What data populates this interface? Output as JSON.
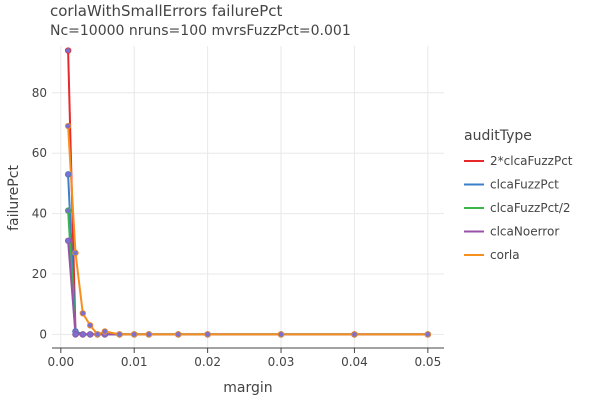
{
  "chart_data": {
    "type": "line",
    "title": "corlaWithSmallErrors failurePct",
    "subtitle": "Nc=10000 nruns=100 mvrsFuzzPct=0.001",
    "xlabel": "margin",
    "ylabel": "failurePct",
    "xlim": [
      -0.0012,
      0.0522
    ],
    "ylim": [
      -4.5,
      95.5
    ],
    "xticks": [
      {
        "value": 0,
        "label": "0.00"
      },
      {
        "value": 0.01,
        "label": "0.01"
      },
      {
        "value": 0.02,
        "label": "0.02"
      },
      {
        "value": 0.03,
        "label": "0.03"
      },
      {
        "value": 0.04,
        "label": "0.04"
      },
      {
        "value": 0.05,
        "label": "0.05"
      }
    ],
    "yticks": [
      {
        "value": 0,
        "label": "0"
      },
      {
        "value": 20,
        "label": "20"
      },
      {
        "value": 40,
        "label": "40"
      },
      {
        "value": 60,
        "label": "60"
      },
      {
        "value": 80,
        "label": "80"
      }
    ],
    "grid": true,
    "legend_title": "auditType",
    "legend_position": "right",
    "marker_color": "#7b6fd0",
    "x": [
      0.001,
      0.002,
      0.003,
      0.004,
      0.005,
      0.006,
      0.008,
      0.01,
      0.012,
      0.016,
      0.02,
      0.03,
      0.04,
      0.05
    ],
    "series": [
      {
        "name": "2*clcaFuzzPct",
        "color": "#e8292b",
        "values": [
          94,
          1,
          0,
          0,
          0,
          0,
          0,
          0,
          0,
          0,
          0,
          0,
          0,
          0
        ]
      },
      {
        "name": "clcaFuzzPct",
        "color": "#3d7fc9",
        "values": [
          53,
          1,
          0,
          0,
          0,
          0,
          0,
          0,
          0,
          0,
          0,
          0,
          0,
          0
        ]
      },
      {
        "name": "clcaFuzzPct/2",
        "color": "#3cb54b",
        "values": [
          41,
          0,
          0,
          0,
          0,
          0,
          0,
          0,
          0,
          0,
          0,
          0,
          0,
          0
        ]
      },
      {
        "name": "clcaNoerror",
        "color": "#9a51a8",
        "values": [
          31,
          0,
          0,
          0,
          0,
          0,
          0,
          0,
          0,
          0,
          0,
          0,
          0,
          0
        ]
      },
      {
        "name": "corla",
        "color": "#f5901e",
        "values": [
          69,
          27,
          7,
          3,
          0,
          1,
          0,
          0,
          0,
          0,
          0,
          0,
          0,
          0
        ]
      }
    ]
  }
}
